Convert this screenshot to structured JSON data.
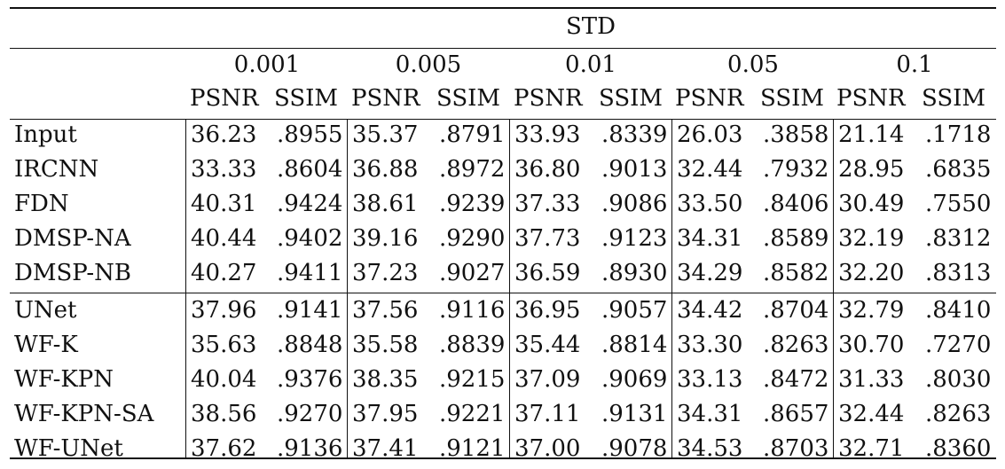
{
  "table": {
    "super_header": "STD",
    "groups": [
      "0.001",
      "0.005",
      "0.01",
      "0.05",
      "0.1"
    ],
    "metric_headers": [
      "PSNR",
      "SSIM"
    ],
    "rows": [
      {
        "method": "Input",
        "values": [
          "36.23",
          ".8955",
          "35.37",
          ".8791",
          "33.93",
          ".8339",
          "26.03",
          ".3858",
          "21.14",
          ".1718"
        ]
      },
      {
        "method": "IRCNN",
        "values": [
          "33.33",
          ".8604",
          "36.88",
          ".8972",
          "36.80",
          ".9013",
          "32.44",
          ".7932",
          "28.95",
          ".6835"
        ]
      },
      {
        "method": "FDN",
        "values": [
          "40.31",
          ".9424",
          "38.61",
          ".9239",
          "37.33",
          ".9086",
          "33.50",
          ".8406",
          "30.49",
          ".7550"
        ]
      },
      {
        "method": "DMSP-NA",
        "values": [
          "40.44",
          ".9402",
          "39.16",
          ".9290",
          "37.73",
          ".9123",
          "34.31",
          ".8589",
          "32.19",
          ".8312"
        ]
      },
      {
        "method": "DMSP-NB",
        "values": [
          "40.27",
          ".9411",
          "37.23",
          ".9027",
          "36.59",
          ".8930",
          "34.29",
          ".8582",
          "32.20",
          ".8313"
        ]
      },
      {
        "method": "UNet",
        "values": [
          "37.96",
          ".9141",
          "37.56",
          ".9116",
          "36.95",
          ".9057",
          "34.42",
          ".8704",
          "32.79",
          ".8410"
        ]
      },
      {
        "method": "WF-K",
        "values": [
          "35.63",
          ".8848",
          "35.58",
          ".8839",
          "35.44",
          ".8814",
          "33.30",
          ".8263",
          "30.70",
          ".7270"
        ]
      },
      {
        "method": "WF-KPN",
        "values": [
          "40.04",
          ".9376",
          "38.35",
          ".9215",
          "37.09",
          ".9069",
          "33.13",
          ".8472",
          "31.33",
          ".8030"
        ]
      },
      {
        "method": "WF-KPN-SA",
        "values": [
          "38.56",
          ".9270",
          "37.95",
          ".9221",
          "37.11",
          ".9131",
          "34.31",
          ".8657",
          "32.44",
          ".8263"
        ]
      },
      {
        "method": "WF-UNet",
        "values": [
          "37.62",
          ".9136",
          "37.41",
          ".9121",
          "37.00",
          ".9078",
          "34.53",
          ".8703",
          "32.71",
          ".8360"
        ]
      }
    ]
  }
}
